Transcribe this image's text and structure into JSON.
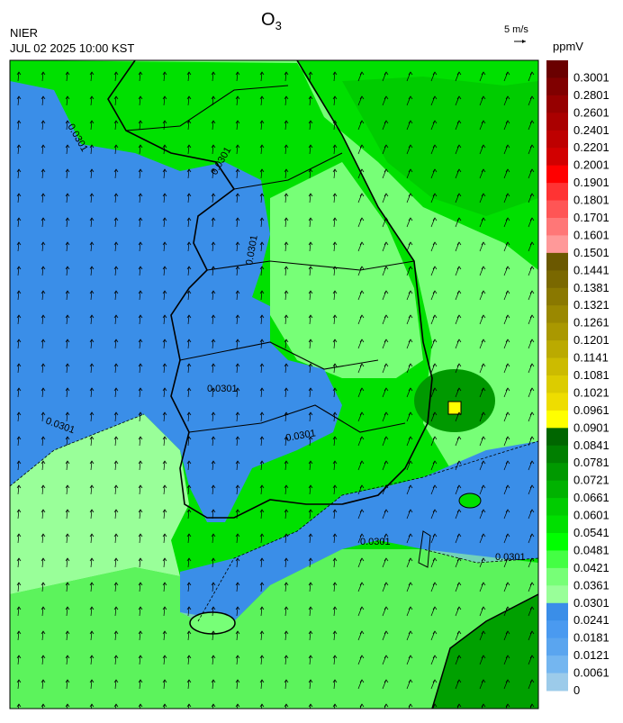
{
  "header": {
    "title": {
      "base": "O",
      "subscript": "3"
    },
    "agency": "NIER",
    "timestamp": "JUL 02 2025 10:00 KST",
    "wind_scale": "5 m/s"
  },
  "legend": {
    "title": "ppmV",
    "levels": [
      0.3001,
      0.2801,
      0.2601,
      0.2401,
      0.2201,
      0.2001,
      0.1901,
      0.1801,
      0.1701,
      0.1601,
      0.1501,
      0.1441,
      0.1381,
      0.1321,
      0.1261,
      0.1201,
      0.1141,
      0.1081,
      0.1021,
      0.0961,
      0.0901,
      0.0841,
      0.0781,
      0.0721,
      0.0661,
      0.0601,
      0.0541,
      0.0481,
      0.0421,
      0.0361,
      0.0301,
      0.0241,
      0.0181,
      0.0121,
      0.0061,
      0
    ],
    "colors": [
      "#6a0000",
      "#800000",
      "#960000",
      "#aa0000",
      "#be0000",
      "#d20000",
      "#ff0000",
      "#ff3333",
      "#ff5555",
      "#ff7777",
      "#ff9999",
      "#6b5800",
      "#7a6800",
      "#8a7800",
      "#9a8800",
      "#aa9800",
      "#bbaa00",
      "#ccbb00",
      "#dccc00",
      "#eedd00",
      "#ffff00",
      "#006600",
      "#007f00",
      "#009900",
      "#00b200",
      "#00cc00",
      "#00e000",
      "#00ff00",
      "#44ff44",
      "#77ff77",
      "#99ff99",
      "#3a8ee8",
      "#4a9af0",
      "#5aa5ef",
      "#74b6f0",
      "#9ccbea"
    ]
  },
  "contour_labels": [
    "0.0301",
    "0.0301",
    "0.0301",
    "0.0301",
    "0.0301",
    "0.0301",
    "0.0301",
    "0.0301"
  ]
}
